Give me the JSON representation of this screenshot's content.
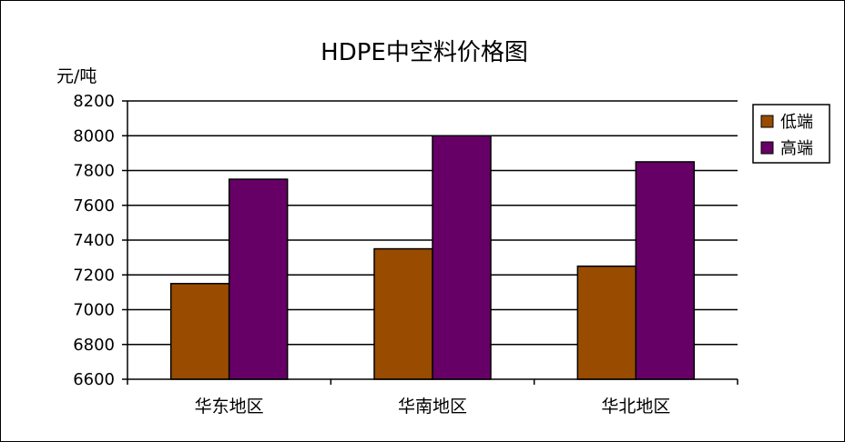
{
  "chart_data": {
    "type": "bar",
    "title": "HDPE中空料价格图",
    "ylabel": "元/吨",
    "xlabel": "",
    "categories": [
      "华东地区",
      "华南地区",
      "华北地区"
    ],
    "series": [
      {
        "name": "低端",
        "values": [
          7150,
          7350,
          7250
        ],
        "color": "#994C00"
      },
      {
        "name": "高端",
        "values": [
          7750,
          8000,
          7850
        ],
        "color": "#660066"
      }
    ],
    "ylim": [
      6600,
      8200
    ],
    "yticks": [
      6600,
      6800,
      7000,
      7200,
      7400,
      7600,
      7800,
      8000,
      8200
    ],
    "grid": true,
    "legend": "right"
  }
}
